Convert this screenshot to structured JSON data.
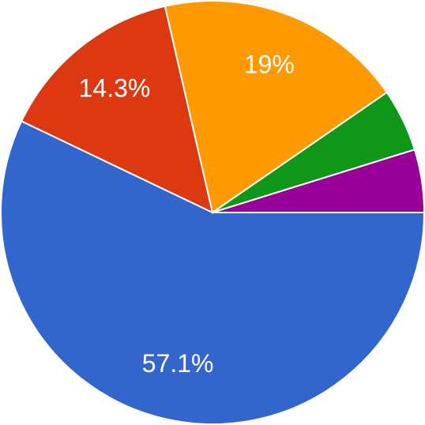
{
  "chart_data": {
    "type": "pie",
    "values": [
      57.1,
      14.3,
      19,
      4.8,
      4.8
    ],
    "value_labels": [
      "57.1%",
      "14.3%",
      "19%",
      null,
      null
    ],
    "colors": [
      "#3366cc",
      "#dc3912",
      "#ff9900",
      "#109618",
      "#990099"
    ]
  }
}
